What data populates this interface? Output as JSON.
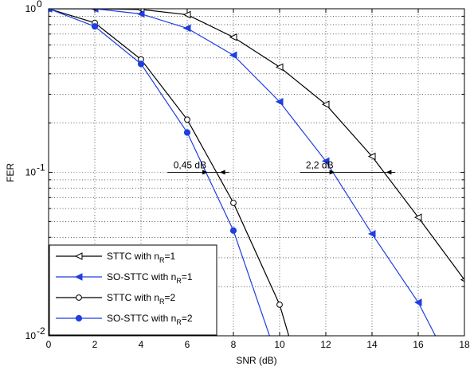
{
  "chart_data": {
    "type": "line",
    "xlabel": "SNR (dB)",
    "ylabel": "FER",
    "xlim": [
      0,
      18
    ],
    "ylim": [
      0.01,
      1
    ],
    "yscale": "log",
    "grid": true,
    "legend_position": "bottom-left",
    "x_ticks": [
      "0",
      "2",
      "4",
      "6",
      "8",
      "10",
      "12",
      "14",
      "16",
      "18"
    ],
    "y_ticks": [
      {
        "value": 1,
        "base": "10",
        "exp": "0"
      },
      {
        "value": 0.1,
        "base": "10",
        "exp": "-1"
      },
      {
        "value": 0.01,
        "base": "10",
        "exp": "-2"
      }
    ],
    "series": [
      {
        "name": "STTC with n",
        "name_sub": "R",
        "name_suffix": "=1",
        "color": "#000000",
        "marker": "triangle-left-open",
        "x": [
          0,
          2,
          4,
          6,
          8,
          10,
          12,
          14,
          16,
          18
        ],
        "y": [
          1.0,
          1.0,
          0.99,
          0.92,
          0.67,
          0.44,
          0.26,
          0.125,
          0.053,
          0.022
        ]
      },
      {
        "name": "SO-STTC with n",
        "name_sub": "R",
        "name_suffix": "=1",
        "color": "#1f3fe0",
        "marker": "triangle-left-filled",
        "x": [
          0,
          2,
          4,
          6,
          8,
          10,
          12,
          14,
          16,
          17
        ],
        "y": [
          1.0,
          1.0,
          0.93,
          0.76,
          0.52,
          0.27,
          0.117,
          0.042,
          0.016,
          0.0085
        ]
      },
      {
        "name": "STTC with n",
        "name_sub": "R",
        "name_suffix": "=2",
        "color": "#000000",
        "marker": "circle-open",
        "x": [
          0,
          2,
          4,
          6,
          8,
          10,
          10.6
        ],
        "y": [
          1.0,
          0.82,
          0.49,
          0.21,
          0.065,
          0.0155,
          0.008
        ]
      },
      {
        "name": "SO-STTC with n",
        "name_sub": "R",
        "name_suffix": "=2",
        "color": "#1f3fe0",
        "marker": "circle-filled",
        "x": [
          0,
          2,
          4,
          6,
          8,
          9.8
        ],
        "y": [
          1.0,
          0.78,
          0.46,
          0.175,
          0.044,
          0.008
        ]
      }
    ],
    "annotations": [
      {
        "text": "0,45 dB",
        "x1": 6.9,
        "x2": 7.4,
        "y": 0.1
      },
      {
        "text": "2,2 dB",
        "x1": 12.4,
        "x2": 14.6,
        "y": 0.1
      }
    ]
  }
}
